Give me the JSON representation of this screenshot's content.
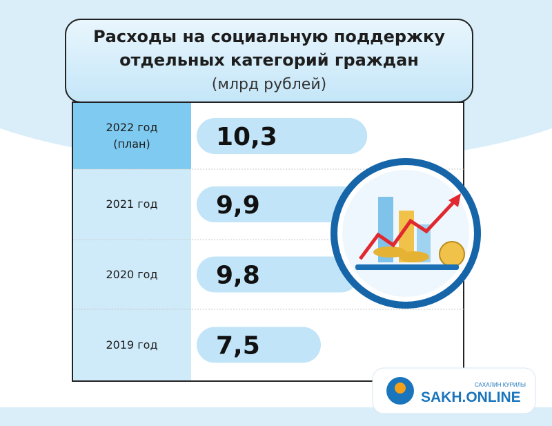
{
  "chart_data": {
    "type": "bar",
    "orientation": "horizontal",
    "title": "Расходы на социальную поддержку отдельных категорий граждан",
    "subtitle": "(млрд рублей)",
    "categories": [
      "2022 год (план)",
      "2021 год",
      "2020 год",
      "2019 год"
    ],
    "values": [
      10.3,
      9.9,
      9.8,
      7.5
    ],
    "value_labels": [
      "10,3",
      "9,9",
      "9,8",
      "7,5"
    ],
    "color": "#c2e4f8"
  },
  "logo": {
    "name": "SAKH.ONLINE",
    "tagline": "САХАЛИН КУРИЛЫ"
  }
}
